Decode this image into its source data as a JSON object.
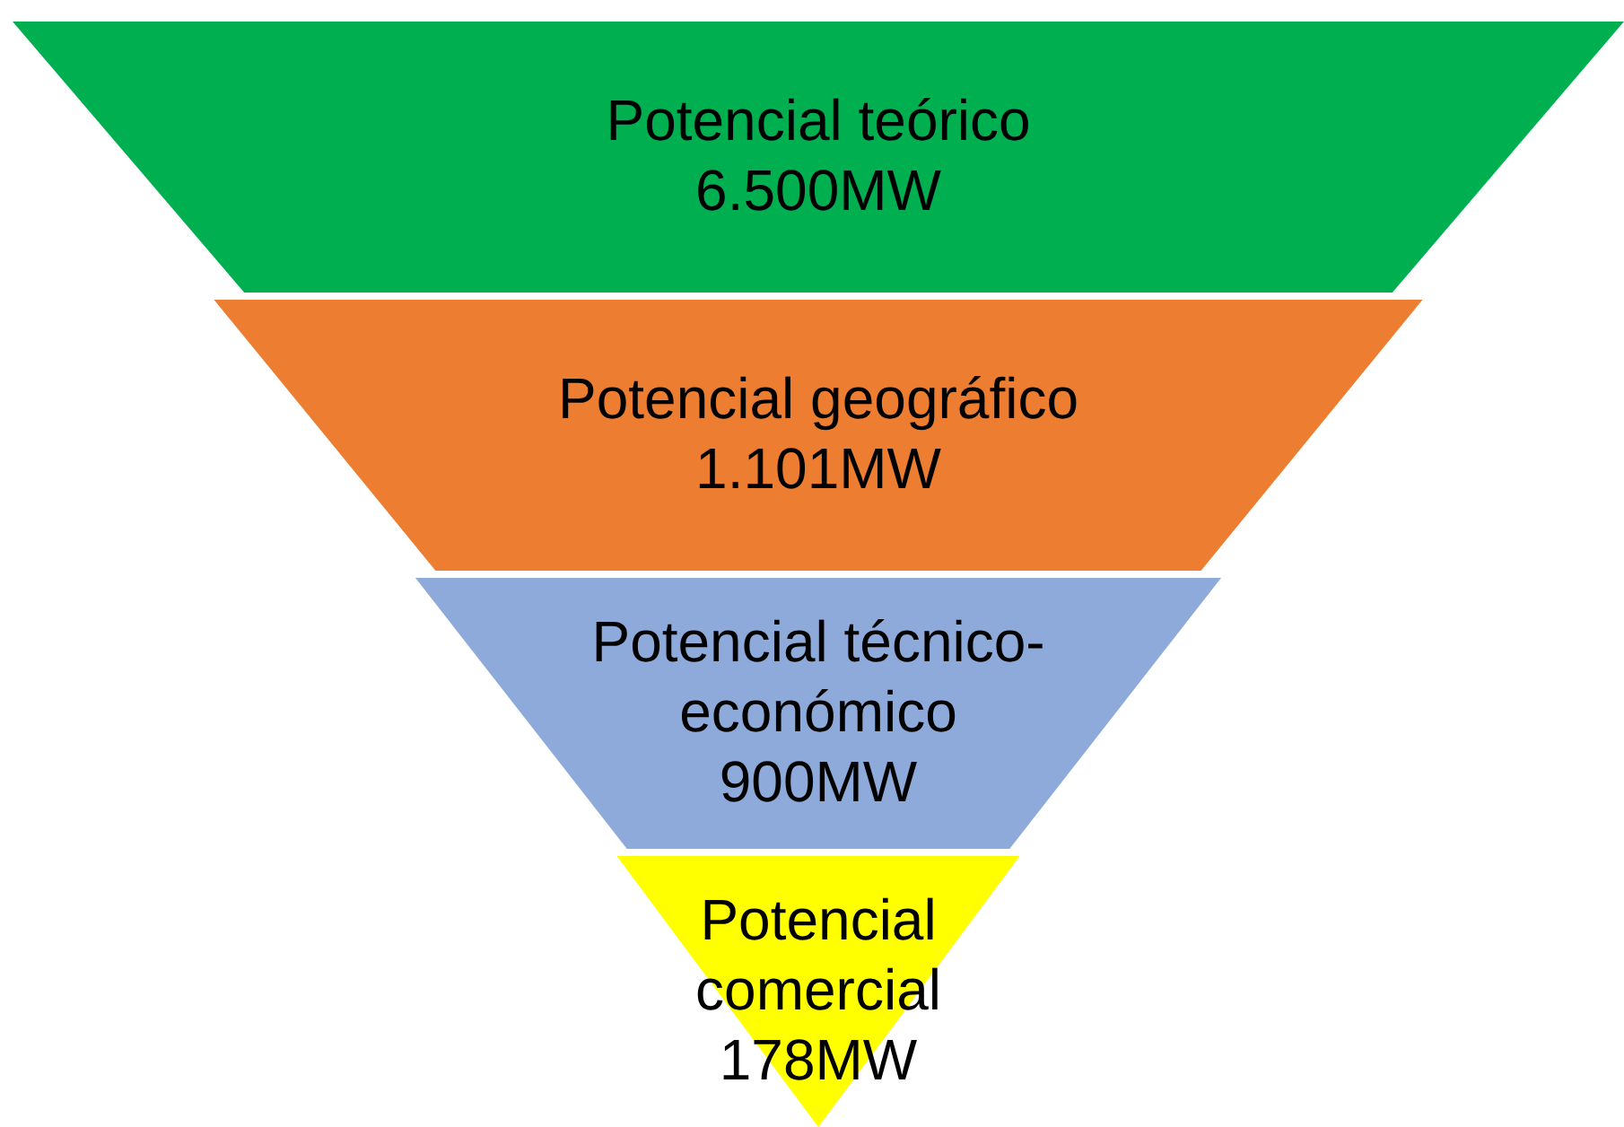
{
  "chart_data": {
    "type": "other",
    "categories": [
      "Potencial teórico",
      "Potencial geográfico",
      "Potencial técnico-económico",
      "Potencial comercial"
    ],
    "values": [
      6500,
      1101,
      900,
      178
    ],
    "value_labels": [
      "6.500MW",
      "1.101MW",
      "900MW",
      "178MW"
    ],
    "colors": [
      "#00b050",
      "#ed7d31",
      "#8eaadb",
      "#ffff00"
    ]
  }
}
